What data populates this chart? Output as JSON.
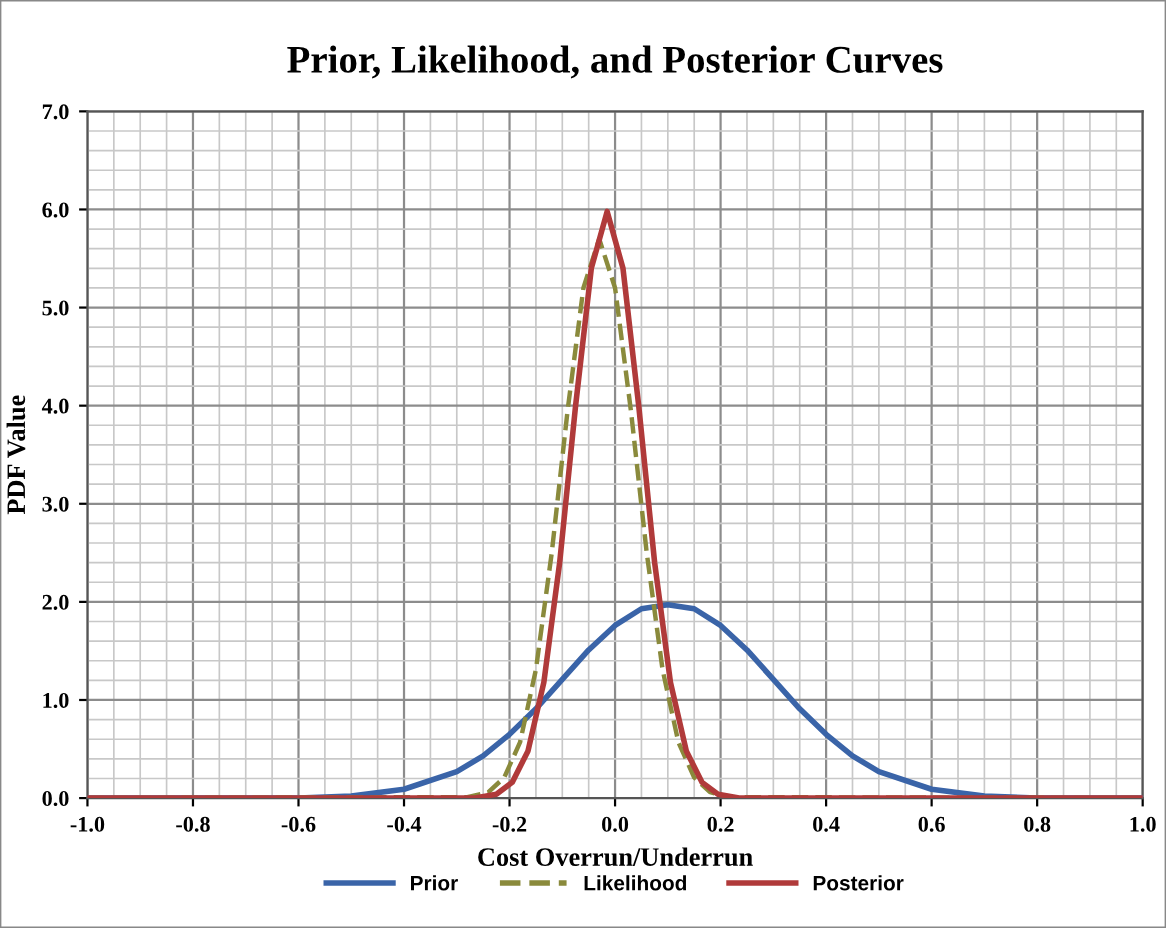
{
  "chart_data": {
    "type": "line",
    "title": "Prior, Likelihood, and Posterior Curves",
    "xlabel": "Cost Overrun/Underrun",
    "ylabel": "PDF Value",
    "series": [
      {
        "name": "Prior",
        "color": "#3a64a8",
        "line_style": "solid",
        "x": [
          -1.0,
          -0.8,
          -0.6,
          -0.5,
          -0.4,
          -0.3,
          -0.25,
          -0.2,
          -0.15,
          -0.1,
          -0.05,
          0.0,
          0.05,
          0.1,
          0.15,
          0.2,
          0.25,
          0.3,
          0.35,
          0.4,
          0.45,
          0.5,
          0.6,
          0.7,
          0.8,
          1.0
        ],
        "values": [
          0.0,
          0.0,
          0.0,
          0.02,
          0.09,
          0.27,
          0.43,
          0.65,
          0.91,
          1.21,
          1.51,
          1.76,
          1.93,
          1.97,
          1.93,
          1.76,
          1.51,
          1.21,
          0.91,
          0.65,
          0.43,
          0.27,
          0.09,
          0.02,
          0.0,
          0.0
        ]
      },
      {
        "name": "Likelihood",
        "color": "#8a8a3c",
        "line_style": "dashed",
        "x": [
          -1.0,
          -0.28,
          -0.24,
          -0.21,
          -0.18,
          -0.15,
          -0.12,
          -0.09,
          -0.06,
          -0.03,
          0.0,
          0.03,
          0.06,
          0.09,
          0.12,
          0.15,
          0.18,
          0.22,
          1.0
        ],
        "values": [
          0.0,
          0.01,
          0.06,
          0.21,
          0.57,
          1.31,
          2.5,
          3.95,
          5.2,
          5.7,
          5.2,
          3.95,
          2.5,
          1.31,
          0.57,
          0.21,
          0.06,
          0.01,
          0.0
        ]
      },
      {
        "name": "Posterior",
        "color": "#b03a3a",
        "line_style": "solid",
        "x": [
          -1.0,
          -0.265,
          -0.225,
          -0.195,
          -0.165,
          -0.135,
          -0.105,
          -0.075,
          -0.045,
          -0.015,
          0.015,
          0.045,
          0.075,
          0.105,
          0.135,
          0.165,
          0.195,
          0.235,
          1.0
        ],
        "values": [
          0.0,
          0.0,
          0.04,
          0.16,
          0.48,
          1.18,
          2.4,
          3.99,
          5.4,
          5.98,
          5.4,
          3.99,
          2.4,
          1.18,
          0.48,
          0.16,
          0.04,
          0.0,
          0.0
        ]
      }
    ],
    "xlim": [
      -1.0,
      1.0
    ],
    "xticks": [
      {
        "value": -1.0,
        "label": "-1.0"
      },
      -0.8,
      -0.6,
      -0.4,
      -0.2,
      {
        "value": 0.0,
        "label": "0.0"
      },
      0.2,
      0.4,
      0.6,
      0.8,
      {
        "value": 1.0,
        "label": "1.0"
      }
    ],
    "ylim": [
      0.0,
      7.0
    ],
    "yticks": [
      {
        "value": 0.0,
        "label": "0.0"
      },
      {
        "value": 1.0,
        "label": "1.0"
      },
      {
        "value": 2.0,
        "label": "2.0"
      },
      {
        "value": 3.0,
        "label": "3.0"
      },
      {
        "value": 4.0,
        "label": "4.0"
      },
      {
        "value": 5.0,
        "label": "5.0"
      },
      {
        "value": 6.0,
        "label": "6.0"
      },
      {
        "value": 7.0,
        "label": "7.0"
      }
    ],
    "grid": true,
    "legend": "bottom",
    "marker": "none"
  }
}
